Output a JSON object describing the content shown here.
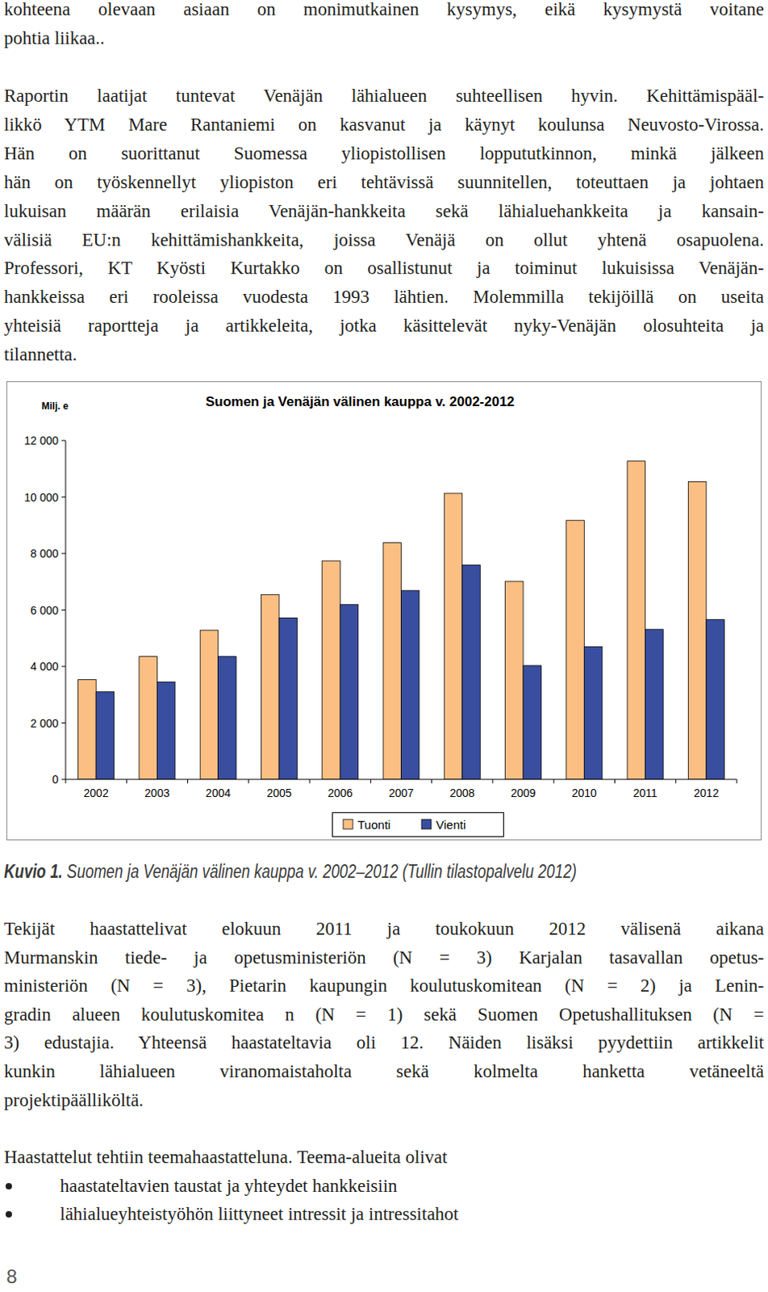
{
  "paragraphs": [
    {
      "lines": [
        "kohteena olevaan asiaan on monimutkainen kysymys, eikä kysymystä voitane",
        "pohtia liikaa.."
      ]
    },
    {
      "lines": [
        "Raportin laatijat tuntevat Venäjän lähialueen suhteellisen hyvin. Kehittämispääl-",
        "likkö YTM Mare Rantaniemi on kasvanut ja käynyt koulunsa Neuvosto-Virossa.",
        "Hän on suorittanut Suomessa yliopistollisen loppututkinnon, minkä jälkeen",
        "hän on työskennellyt yliopiston eri tehtävissä suunnitellen, toteuttaen ja johtaen",
        "lukuisan määrän erilaisia Venäjän-hankkeita sekä lähialuehankkeita ja kansain-",
        "välisiä EU:n kehittämishankkeita, joissa Venäjä on ollut yhtenä osapuolena.",
        "Professori, KT Kyösti Kurtakko on osallistunut ja toiminut lukuisissa Venäjän-",
        "hankkeissa eri rooleissa vuodesta 1993 lähtien. Molemmilla tekijöillä on useita",
        "yhteisiä raportteja ja artikkeleita, jotka käsittelevät nyky-Venäjän olosuhteita ja",
        "tilannetta."
      ]
    },
    {
      "lines": [
        "Tekijät haastattelivat elokuun 2011 ja toukokuun 2012 välisenä aikana",
        "Murmanskin tiede- ja opetusministeriön (N = 3) Karjalan tasavallan opetus-",
        "ministeriön (N = 3), Pietarin kaupungin koulutuskomitean (N = 2) ja Lenin-",
        "gradin alueen koulutuskomitea n (N = 1) sekä Suomen Opetushallituksen (N =",
        "3) edustajia. Yhteensä haastateltavia oli 12. Näiden lisäksi pyydettiin artikkelit",
        "kunkin lähialueen viranomaistaholta sekä kolmelta hanketta vetäneeltä",
        "projektipäälliköltä."
      ]
    },
    {
      "lines": [
        "Haastattelut tehtiin teemahaastatteluna. Teema-alueita olivat"
      ]
    }
  ],
  "chart_data": {
    "type": "bar",
    "title": "Suomen ja Venäjän välinen kauppa v. 2002-2012",
    "y_label": "Milj. e",
    "categories": [
      "2002",
      "2003",
      "2004",
      "2005",
      "2006",
      "2007",
      "2008",
      "2009",
      "2010",
      "2011",
      "2012"
    ],
    "series": [
      {
        "name": "Tuonti",
        "color": "#fbbf84",
        "values": [
          3530,
          4350,
          5280,
          6540,
          7740,
          8380,
          10130,
          7010,
          9170,
          11270,
          10540
        ]
      },
      {
        "name": "Vienti",
        "color": "#3a4ea0",
        "values": [
          3100,
          3450,
          4350,
          5720,
          6190,
          6690,
          7590,
          4030,
          4700,
          5310,
          5660
        ]
      }
    ],
    "ylim": [
      0,
      12000
    ],
    "yticks": [
      0,
      {
        "value": 2000,
        "label": "2 000"
      },
      {
        "value": 4000,
        "label": "4 000"
      },
      {
        "value": 6000,
        "label": "6 000"
      },
      {
        "value": 8000,
        "label": "8 000"
      },
      {
        "value": 10000,
        "label": "10 000"
      },
      {
        "value": 12000,
        "label": "12 000"
      }
    ],
    "grid": false,
    "legend": "bottom"
  },
  "caption": {
    "label": "Kuvio 1.",
    "text": "Suomen ja Venäjän välinen kauppa v. 2002–2012 (Tullin tilastopalvelu 2012)"
  },
  "list": [
    "haastateltavien taustat ja yhteydet hankkeisiin",
    "lähialueyhteistyöhön liittyneet intressit ja intressitahot"
  ],
  "page_number": "8"
}
